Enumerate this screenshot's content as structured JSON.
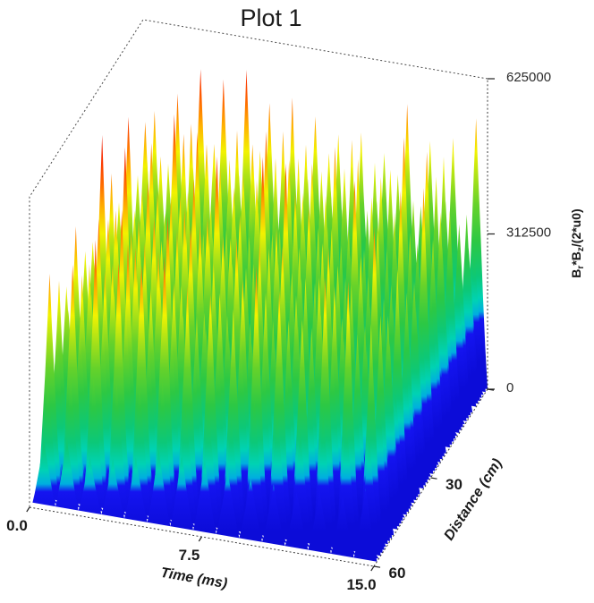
{
  "page": {
    "background": "#ffffff"
  },
  "plot": {
    "title": "Plot 1",
    "x_axis": {
      "label": "Time (ms)",
      "tick_labels": [
        "0.0",
        "7.5",
        "15.0"
      ],
      "tick_values": [
        0,
        7.5,
        15
      ]
    },
    "y_axis": {
      "label": "Distance (cm)",
      "tick_labels": [
        "",
        "30",
        "60"
      ],
      "tick_values": [
        0,
        30,
        60
      ]
    },
    "z_axis": {
      "label": "Br*Bz/(2*u0)",
      "label_parts": [
        {
          "text": "B",
          "sub": false
        },
        {
          "text": "r",
          "sub": true
        },
        {
          "text": "*B",
          "sub": false
        },
        {
          "text": "z",
          "sub": true
        },
        {
          "text": "/(2*u0)",
          "sub": false
        }
      ],
      "tick_labels": [
        "0",
        "312500",
        "625000"
      ],
      "tick_values": [
        0,
        312500,
        625000
      ]
    }
  },
  "chart_data": {
    "type": "surface",
    "title": "Plot 1",
    "xlabel": "Time (ms)",
    "x_range": [
      0,
      15
    ],
    "ylabel": "Distance (cm)",
    "y_range": [
      0,
      60
    ],
    "zlabel": "Br*Bz/(2*u0)",
    "z_range": [
      0,
      625000
    ],
    "x_ticks": [
      0,
      7.5,
      15
    ],
    "y_ticks": [
      0,
      30,
      60
    ],
    "z_ticks": [
      0,
      312500,
      625000
    ],
    "legend": "none",
    "frame": "dashed 3D box edges",
    "surface_model": {
      "description": "dense grid of sharp periodic peaks colored by height (jet colormap), solid blue band near z=0",
      "peaks_along_time": 15,
      "peaks_along_distance": 13,
      "peak_sharpness_exponent": 1.15,
      "peak_amplitude_range": [
        0.7,
        0.93
      ],
      "z_max": 625000
    },
    "colormap_jet": [
      [
        0.0,
        "#0c0cd8"
      ],
      [
        0.13,
        "#1414f0"
      ],
      [
        0.155,
        "#00aee0"
      ],
      [
        0.2,
        "#00d2b4"
      ],
      [
        0.27,
        "#0cc878"
      ],
      [
        0.38,
        "#2cc844"
      ],
      [
        0.5,
        "#66d22a"
      ],
      [
        0.6,
        "#b4e414"
      ],
      [
        0.67,
        "#f2f200"
      ],
      [
        0.75,
        "#ffb400"
      ],
      [
        0.83,
        "#ff6a00"
      ],
      [
        0.91,
        "#fa3000"
      ],
      [
        1.0,
        "#e61400"
      ]
    ]
  }
}
